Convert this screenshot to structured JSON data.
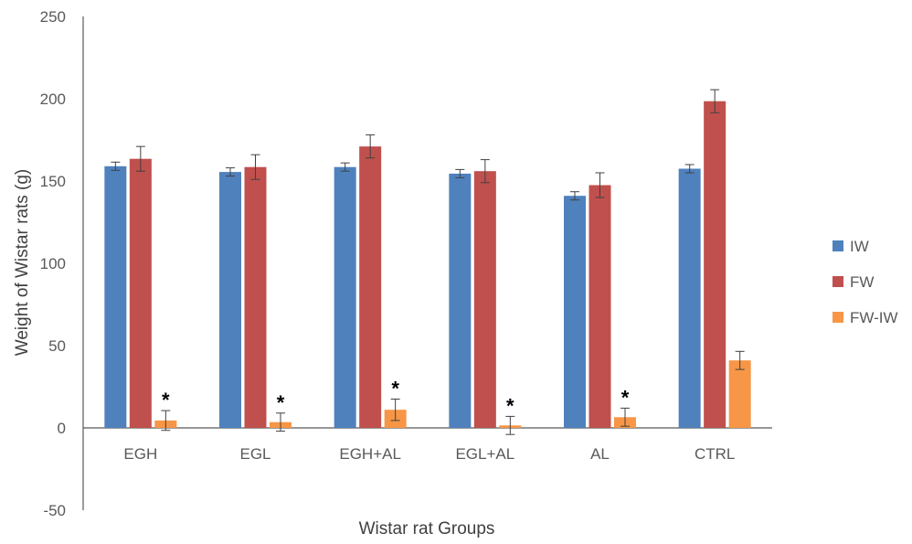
{
  "chart_data": {
    "type": "bar",
    "xlabel": "Wistar rat Groups",
    "ylabel": "Weight of Wistar rats (g)",
    "ylim": [
      -50,
      250
    ],
    "yticks": [
      "250",
      "200",
      "150",
      "100",
      "50",
      "0",
      "-50"
    ],
    "ytick_values": [
      250,
      200,
      150,
      100,
      50,
      0,
      -50
    ],
    "categories": [
      "EGH",
      "EGL",
      "EGH+AL",
      "EGL+AL",
      "AL",
      "CTRL"
    ],
    "series": [
      {
        "name": "IW",
        "color": "#4F81BD",
        "values": [
          159,
          155.5,
          158.5,
          154.5,
          141,
          157.5
        ],
        "errors": [
          2.5,
          2.5,
          2.5,
          2.5,
          2.5,
          2.5
        ]
      },
      {
        "name": "FW",
        "color": "#C0504D",
        "values": [
          163.5,
          158.5,
          171,
          156,
          147.5,
          198.5
        ],
        "errors": [
          7.5,
          7.5,
          7,
          7,
          7.5,
          7
        ]
      },
      {
        "name": "FW-IW",
        "color": "#F79646",
        "values": [
          4.5,
          3.5,
          11,
          1.5,
          6.5,
          41
        ],
        "errors": [
          6,
          5.5,
          6.5,
          5.5,
          5.5,
          5.5
        ]
      }
    ],
    "significance_markers": [
      "*",
      "*",
      "*",
      "*",
      "*",
      ""
    ],
    "legend_position": "right",
    "grid": false
  }
}
